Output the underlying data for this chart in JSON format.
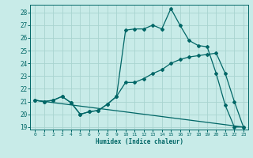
{
  "xlabel": "Humidex (Indice chaleur)",
  "bg_color": "#c8ebe8",
  "grid_color": "#a8d4d0",
  "line_color": "#006666",
  "xlim": [
    -0.5,
    23.5
  ],
  "ylim": [
    18.8,
    28.6
  ],
  "yticks": [
    19,
    20,
    21,
    22,
    23,
    24,
    25,
    26,
    27,
    28
  ],
  "xticks": [
    0,
    1,
    2,
    3,
    4,
    5,
    6,
    7,
    8,
    9,
    10,
    11,
    12,
    13,
    14,
    15,
    16,
    17,
    18,
    19,
    20,
    21,
    22,
    23
  ],
  "curve1_x": [
    0,
    1,
    2,
    3,
    4,
    5,
    6,
    7,
    8,
    9,
    10,
    11,
    12,
    13,
    14,
    15,
    16,
    17,
    18,
    19,
    20,
    21,
    22,
    23
  ],
  "curve1_y": [
    21.1,
    21.0,
    21.1,
    21.4,
    20.9,
    20.0,
    20.2,
    20.3,
    20.8,
    21.4,
    26.6,
    26.7,
    26.7,
    27.0,
    26.7,
    28.3,
    27.0,
    25.8,
    25.4,
    25.3,
    23.2,
    20.7,
    19.0,
    19.0
  ],
  "curve2_x": [
    0,
    1,
    2,
    3,
    4,
    5,
    6,
    7,
    8,
    9,
    10,
    11,
    12,
    13,
    14,
    15,
    16,
    17,
    18,
    19,
    20,
    21,
    22,
    23
  ],
  "curve2_y": [
    21.1,
    21.0,
    21.1,
    21.4,
    20.9,
    20.0,
    20.2,
    20.3,
    20.8,
    21.4,
    22.5,
    22.5,
    22.8,
    23.2,
    23.5,
    24.0,
    24.3,
    24.5,
    24.6,
    24.7,
    24.8,
    23.2,
    21.0,
    19.0
  ],
  "curve3_x": [
    0,
    23
  ],
  "curve3_y": [
    21.1,
    19.0
  ]
}
